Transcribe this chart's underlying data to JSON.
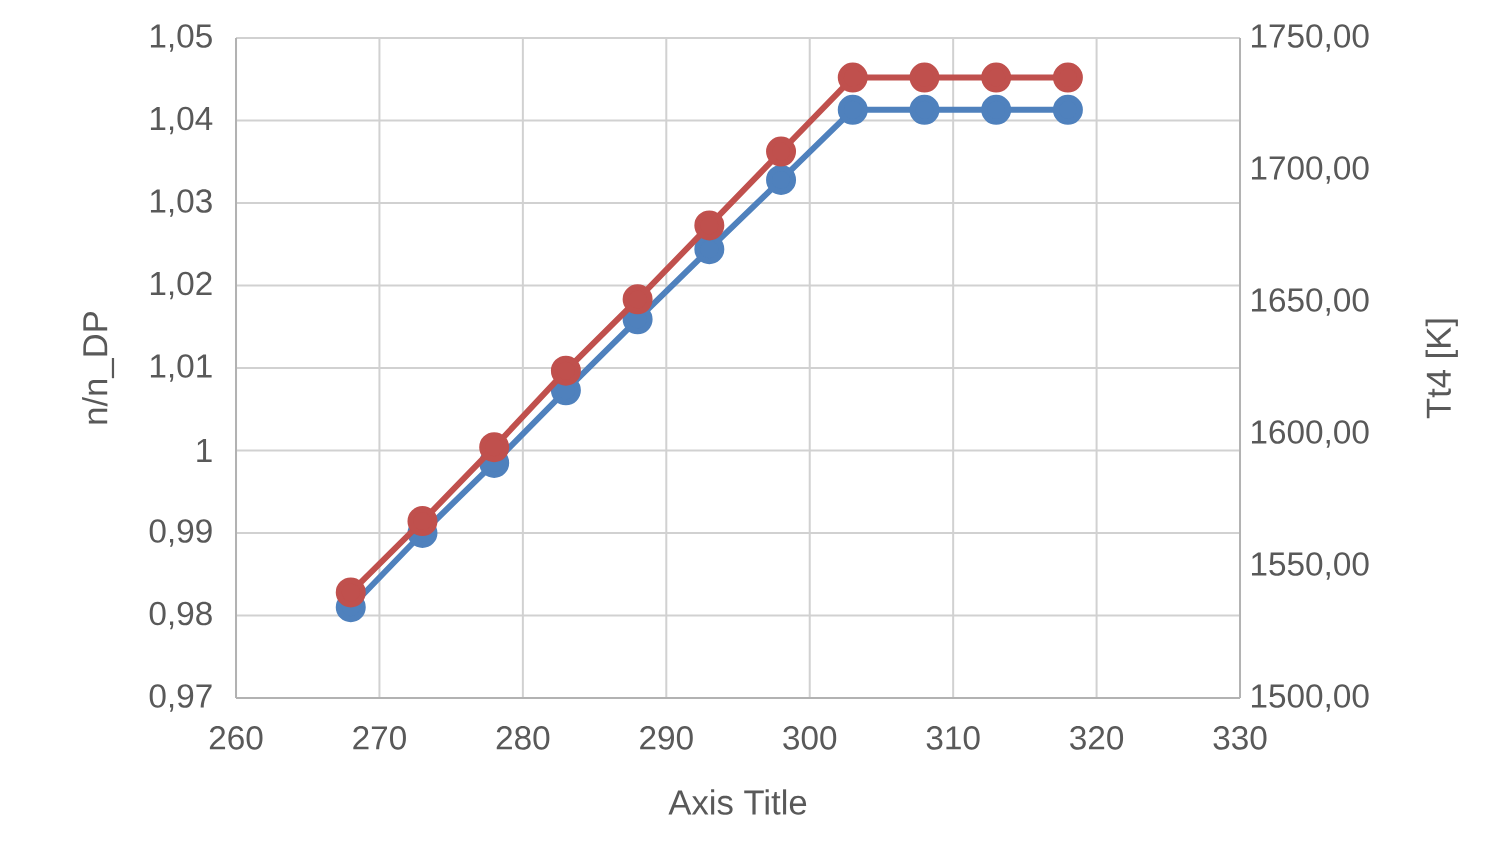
{
  "chart_data": {
    "type": "line",
    "xlabel": "Axis Title",
    "ylabel": "n/n_DP",
    "y2label": "Tt4  [K]",
    "x": [
      268,
      273,
      278,
      283,
      288,
      293,
      298,
      303,
      308,
      313,
      318
    ],
    "series": [
      {
        "color": "#4f81bd",
        "values": [
          0.981,
          0.99,
          0.9985,
          1.0073,
          1.0159,
          1.0244,
          1.0328,
          1.0413,
          1.0413,
          1.0413,
          1.0413
        ]
      },
      {
        "color": "#c0504d",
        "axis": "y2",
        "values": [
          1540,
          1567,
          1595,
          1624,
          1651,
          1679,
          1707,
          1735,
          1735,
          1735,
          1735
        ]
      }
    ],
    "xlim": [
      260,
      330
    ],
    "xticks": [
      260,
      270,
      280,
      290,
      300,
      310,
      320,
      330
    ],
    "ylim": [
      0.97,
      1.05
    ],
    "yticks": [
      {
        "value": 0.97,
        "label": "0,97"
      },
      {
        "value": 0.98,
        "label": "0,98"
      },
      {
        "value": 0.99,
        "label": "0,99"
      },
      {
        "value": 1,
        "label": "1"
      },
      {
        "value": 1.01,
        "label": "1,01"
      },
      {
        "value": 1.02,
        "label": "1,02"
      },
      {
        "value": 1.03,
        "label": "1,03"
      },
      {
        "value": 1.04,
        "label": "1,04"
      },
      {
        "value": 1.05,
        "label": "1,05"
      }
    ],
    "y2lim": [
      1500,
      1750
    ],
    "y2ticks": [
      {
        "value": 1500,
        "label": "1500,00"
      },
      {
        "value": 1550,
        "label": "1550,00"
      },
      {
        "value": 1600,
        "label": "1600,00"
      },
      {
        "value": 1650,
        "label": "1650,00"
      },
      {
        "value": 1700,
        "label": "1700,00"
      },
      {
        "value": 1750,
        "label": "1750,00"
      }
    ],
    "grid": true,
    "marker": "circle",
    "line_style": "solid"
  }
}
